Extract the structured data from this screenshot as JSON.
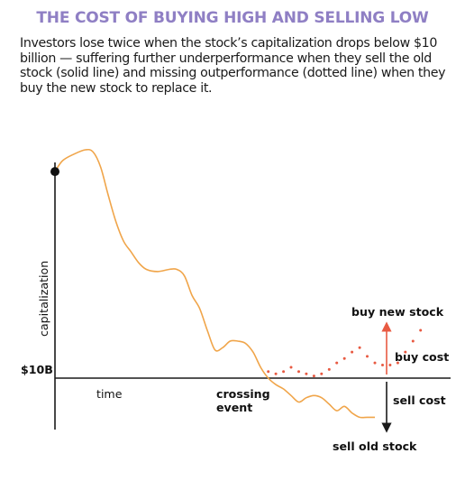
{
  "title": "THE COST OF BUYING HIGH AND SELLING LOW",
  "subtitle": "Investors lose twice when the stock’s capitalization drops below $10 billion — suffering further underperformance when they sell the old stock (solid line) and missing outperformance (dotted line) when they buy the new stock to replace it.",
  "colors": {
    "title": "#8f7fc4",
    "old_stock_line": "#f0a54a",
    "new_stock_dots": "#e85a42",
    "arrow_up": "#e85a42",
    "arrow_down": "#1a1a1a",
    "axis": "#1a1a1a"
  },
  "chart_data": {
    "type": "line",
    "xlabel": "time",
    "ylabel": "capitalization",
    "threshold_label": "$10B",
    "x_axis_label_crossing": "crossing event",
    "annotations": {
      "buy_new_stock": "buy new stock",
      "buy_cost": "buy cost",
      "sell_cost": "sell cost",
      "sell_old_stock": "sell old stock"
    },
    "threshold": 0,
    "ylim": [
      -22,
      100
    ],
    "xlim": [
      0,
      100
    ],
    "series": [
      {
        "style": "solid",
        "values": [
          [
            0,
            95
          ],
          [
            2,
            100
          ],
          [
            5,
            103
          ],
          [
            8,
            105
          ],
          [
            10,
            104
          ],
          [
            12,
            97
          ],
          [
            14,
            84
          ],
          [
            16,
            72
          ],
          [
            18,
            63
          ],
          [
            20,
            58
          ],
          [
            22,
            53
          ],
          [
            24,
            50
          ],
          [
            27,
            49
          ],
          [
            30,
            50
          ],
          [
            32,
            50
          ],
          [
            34,
            47
          ],
          [
            36,
            38
          ],
          [
            38,
            32
          ],
          [
            40,
            22
          ],
          [
            42,
            13
          ],
          [
            44,
            14
          ],
          [
            46,
            17
          ],
          [
            48,
            17
          ],
          [
            50,
            16
          ],
          [
            52,
            12
          ],
          [
            54,
            5
          ],
          [
            56,
            0
          ],
          [
            58,
            -3
          ],
          [
            60,
            -5
          ],
          [
            62,
            -8
          ],
          [
            64,
            -11
          ],
          [
            66,
            -9
          ],
          [
            68,
            -8
          ],
          [
            70,
            -9
          ],
          [
            72,
            -12
          ],
          [
            74,
            -15
          ],
          [
            76,
            -13
          ],
          [
            78,
            -16
          ],
          [
            80,
            -18
          ],
          [
            82,
            -18
          ],
          [
            84,
            -18
          ]
        ]
      },
      {
        "style": "dotted",
        "values": [
          [
            56,
            3
          ],
          [
            58,
            2
          ],
          [
            60,
            3
          ],
          [
            62,
            5
          ],
          [
            64,
            3
          ],
          [
            66,
            2
          ],
          [
            68,
            1
          ],
          [
            70,
            2
          ],
          [
            72,
            4
          ],
          [
            74,
            7
          ],
          [
            76,
            9
          ],
          [
            78,
            12
          ],
          [
            80,
            14
          ],
          [
            82,
            10
          ],
          [
            84,
            7
          ],
          [
            86,
            6
          ],
          [
            88,
            6
          ],
          [
            90,
            7
          ],
          [
            92,
            12
          ],
          [
            94,
            17
          ],
          [
            96,
            22
          ]
        ]
      }
    ],
    "start_marker": [
      0,
      95
    ]
  }
}
